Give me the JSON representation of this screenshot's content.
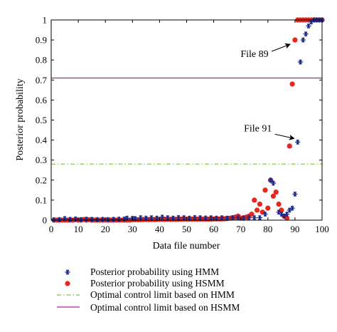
{
  "chart_data": {
    "type": "scatter",
    "xlabel": "Data file number",
    "ylabel": "Posterior probability",
    "xlim": [
      0,
      100
    ],
    "ylim": [
      0,
      1
    ],
    "x_ticks": [
      "0",
      "10",
      "20",
      "30",
      "40",
      "50",
      "60",
      "70",
      "80",
      "90",
      "100"
    ],
    "y_ticks": [
      "0",
      "0.1",
      "0.2",
      "0.3",
      "0.4",
      "0.5",
      "0.6",
      "0.7",
      "0.8",
      "0.9",
      "1"
    ],
    "grid": false,
    "series": [
      {
        "name": "Posterior probability using HMM",
        "marker": "asterisk",
        "color": "#1a2a8c",
        "points": [
          [
            1,
            0.002
          ],
          [
            3,
            0.003
          ],
          [
            5,
            0.008
          ],
          [
            7,
            0.004
          ],
          [
            9,
            0.006
          ],
          [
            11,
            0.003
          ],
          [
            13,
            0.005
          ],
          [
            15,
            0.004
          ],
          [
            17,
            0.003
          ],
          [
            19,
            0.004
          ],
          [
            21,
            0.003
          ],
          [
            23,
            0.004
          ],
          [
            25,
            0.005
          ],
          [
            27,
            0.006
          ],
          [
            28,
            0.01
          ],
          [
            30,
            0.009
          ],
          [
            31,
            0.008
          ],
          [
            33,
            0.012
          ],
          [
            35,
            0.01
          ],
          [
            37,
            0.012
          ],
          [
            39,
            0.01
          ],
          [
            41,
            0.015
          ],
          [
            43,
            0.012
          ],
          [
            45,
            0.01
          ],
          [
            47,
            0.013
          ],
          [
            49,
            0.012
          ],
          [
            51,
            0.01
          ],
          [
            53,
            0.013
          ],
          [
            55,
            0.012
          ],
          [
            57,
            0.011
          ],
          [
            59,
            0.012
          ],
          [
            61,
            0.01
          ],
          [
            63,
            0.012
          ],
          [
            65,
            0.01
          ],
          [
            67,
            0.012
          ],
          [
            69,
            0.012
          ],
          [
            71,
            0.01
          ],
          [
            73,
            0.012
          ],
          [
            75,
            0.012
          ],
          [
            77,
            0.012
          ],
          [
            79,
            0.03
          ],
          [
            81,
            0.2
          ],
          [
            82,
            0.185
          ],
          [
            84,
            0.04
          ],
          [
            85,
            0.03
          ],
          [
            86,
            0.02
          ],
          [
            87,
            0.03
          ],
          [
            88,
            0.05
          ],
          [
            89,
            0.06
          ],
          [
            90,
            0.13
          ],
          [
            91,
            0.39
          ],
          [
            92,
            0.79
          ],
          [
            93,
            0.9
          ],
          [
            94,
            0.93
          ],
          [
            95,
            0.97
          ],
          [
            96,
            0.99
          ],
          [
            97,
            1.0
          ],
          [
            98,
            1.0
          ],
          [
            99,
            1.0
          ],
          [
            100,
            1.0
          ]
        ]
      },
      {
        "name": "Posterior probability using HSMM",
        "marker": "dot",
        "color": "#e8261c",
        "points": [
          [
            1,
            0.0
          ],
          [
            2,
            0.0
          ],
          [
            3,
            0.0
          ],
          [
            4,
            0.0
          ],
          [
            5,
            0.0
          ],
          [
            6,
            0.0
          ],
          [
            7,
            0.0
          ],
          [
            8,
            0.0
          ],
          [
            9,
            0.002
          ],
          [
            10,
            0.0
          ],
          [
            11,
            0.0
          ],
          [
            12,
            0.003
          ],
          [
            13,
            0.0
          ],
          [
            14,
            0.002
          ],
          [
            15,
            0.0
          ],
          [
            16,
            0.0
          ],
          [
            17,
            0.0
          ],
          [
            18,
            0.0
          ],
          [
            19,
            0.0
          ],
          [
            20,
            0.0
          ],
          [
            21,
            0.0
          ],
          [
            22,
            0.0
          ],
          [
            23,
            0.0
          ],
          [
            24,
            0.0
          ],
          [
            25,
            0.0
          ],
          [
            26,
            0.0
          ],
          [
            27,
            0.0
          ],
          [
            28,
            0.0
          ],
          [
            29,
            0.0
          ],
          [
            30,
            0.002
          ],
          [
            31,
            0.002
          ],
          [
            32,
            0.002
          ],
          [
            33,
            0.002
          ],
          [
            34,
            0.003
          ],
          [
            35,
            0.003
          ],
          [
            36,
            0.003
          ],
          [
            37,
            0.003
          ],
          [
            38,
            0.003
          ],
          [
            39,
            0.003
          ],
          [
            40,
            0.004
          ],
          [
            41,
            0.004
          ],
          [
            42,
            0.004
          ],
          [
            43,
            0.004
          ],
          [
            44,
            0.004
          ],
          [
            45,
            0.004
          ],
          [
            46,
            0.004
          ],
          [
            47,
            0.004
          ],
          [
            48,
            0.005
          ],
          [
            49,
            0.005
          ],
          [
            50,
            0.005
          ],
          [
            51,
            0.005
          ],
          [
            52,
            0.005
          ],
          [
            53,
            0.005
          ],
          [
            54,
            0.005
          ],
          [
            55,
            0.005
          ],
          [
            56,
            0.005
          ],
          [
            57,
            0.005
          ],
          [
            58,
            0.005
          ],
          [
            59,
            0.005
          ],
          [
            60,
            0.006
          ],
          [
            61,
            0.006
          ],
          [
            62,
            0.006
          ],
          [
            63,
            0.006
          ],
          [
            64,
            0.007
          ],
          [
            65,
            0.008
          ],
          [
            66,
            0.01
          ],
          [
            67,
            0.012
          ],
          [
            68,
            0.015
          ],
          [
            69,
            0.02
          ],
          [
            70,
            0.01
          ],
          [
            71,
            0.012
          ],
          [
            72,
            0.015
          ],
          [
            73,
            0.02
          ],
          [
            74,
            0.03
          ],
          [
            75,
            0.1
          ],
          [
            76,
            0.05
          ],
          [
            77,
            0.08
          ],
          [
            78,
            0.04
          ],
          [
            79,
            0.15
          ],
          [
            80,
            0.06
          ],
          [
            81,
            0.2
          ],
          [
            82,
            0.12
          ],
          [
            83,
            0.14
          ],
          [
            84,
            0.08
          ],
          [
            85,
            0.05
          ],
          [
            86,
            0.02
          ],
          [
            87,
            0.01
          ],
          [
            88,
            0.37
          ],
          [
            89,
            0.68
          ],
          [
            90,
            0.9
          ],
          [
            91,
            1.0
          ],
          [
            92,
            1.0
          ],
          [
            93,
            1.0
          ],
          [
            94,
            1.0
          ],
          [
            95,
            1.0
          ],
          [
            96,
            1.0
          ],
          [
            97,
            1.0
          ],
          [
            98,
            1.0
          ],
          [
            99,
            1.0
          ],
          [
            100,
            1.0
          ]
        ]
      }
    ],
    "limits": [
      {
        "name": "Optimal control limit based on HMM",
        "value": 0.28,
        "color": "#7fc24a",
        "style": "dash-dot"
      },
      {
        "name": "Optimal control limit based on HSMM",
        "value": 0.71,
        "color": "#b0219a",
        "style": "solid"
      }
    ],
    "annotations": [
      {
        "text": "File 89",
        "x": 89.5,
        "y": 0.9
      },
      {
        "text": "File 91",
        "x": 91,
        "y": 0.39
      }
    ],
    "legend_position": "bottom"
  }
}
